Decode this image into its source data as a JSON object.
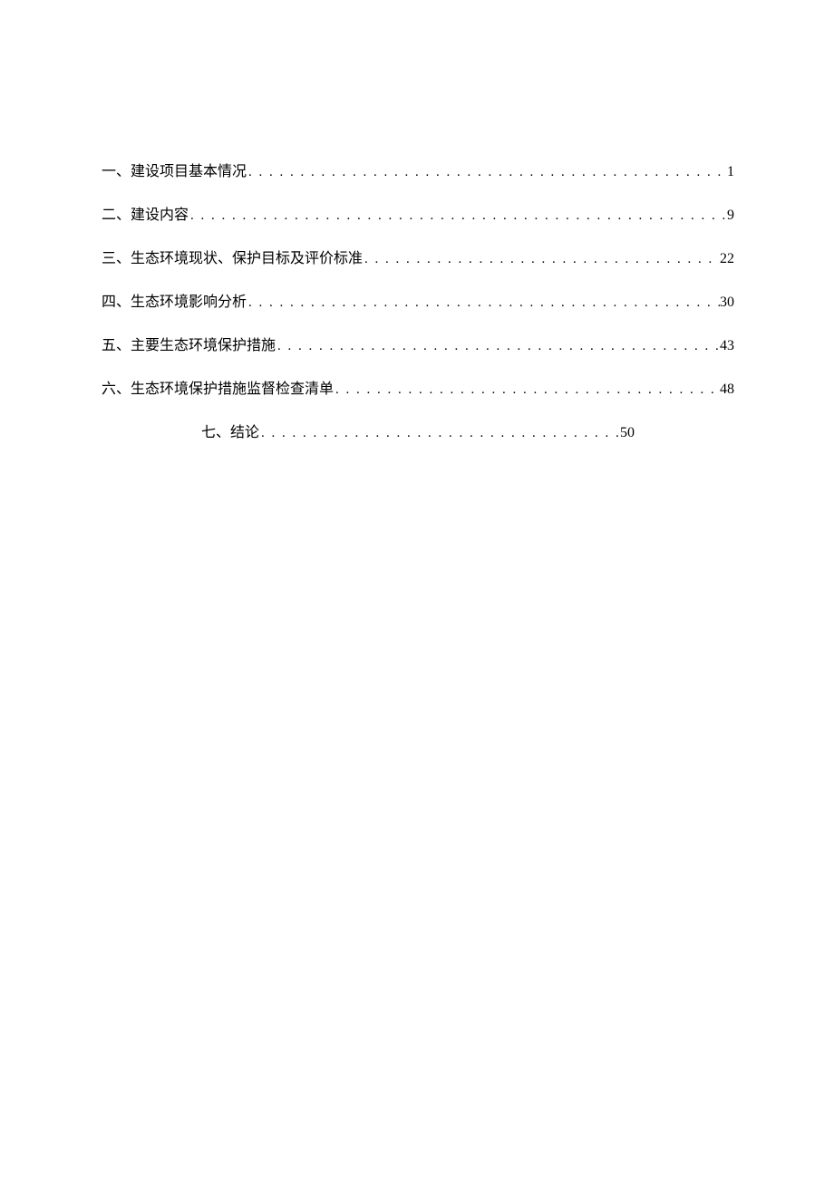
{
  "page": {
    "background_color": "#ffffff",
    "text_color": "#000000",
    "font_family": "SimSun",
    "font_size": 16,
    "line_spacing": 24
  },
  "toc": {
    "entries": [
      {
        "title": "一、建设项目基本情况",
        "page": "1",
        "centered": false
      },
      {
        "title": "二、建设内容",
        "page": "9",
        "centered": false
      },
      {
        "title": "三、生态环境现状、保护目标及评价标准",
        "page": "22",
        "centered": false
      },
      {
        "title": "四、生态环境影响分析",
        "page": "30",
        "centered": false
      },
      {
        "title": "五、主要生态环境保护措施",
        "page": "43",
        "centered": false
      },
      {
        "title": "六、生态环境保护措施监督检查清单",
        "page": "48",
        "centered": false
      },
      {
        "title": "七、结论",
        "page": "50",
        "centered": true
      }
    ]
  }
}
